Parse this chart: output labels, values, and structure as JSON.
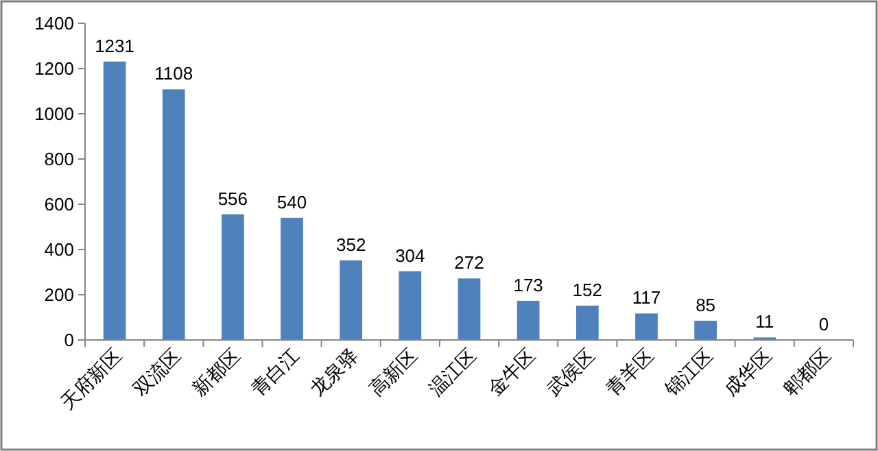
{
  "chart_data": {
    "type": "bar",
    "categories": [
      "天府新区",
      "双流区",
      "新都区",
      "青白江",
      "龙泉驿",
      "高新区",
      "温江区",
      "金牛区",
      "武侯区",
      "青羊区",
      "锦江区",
      "成华区",
      "郫都区"
    ],
    "values": [
      1231,
      1108,
      556,
      540,
      352,
      304,
      272,
      173,
      152,
      117,
      85,
      11,
      0
    ],
    "color": "#4f81bd",
    "ylim": [
      0,
      1400
    ],
    "yticks": [
      0,
      200,
      400,
      600,
      800,
      1000,
      1200,
      1400
    ],
    "data_labels": true,
    "grid": false
  }
}
